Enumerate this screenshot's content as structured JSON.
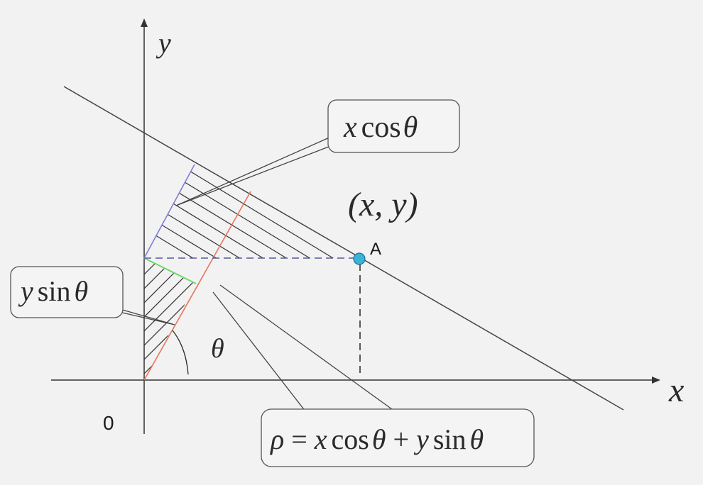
{
  "axes": {
    "x_label": "x",
    "y_label": "y",
    "origin_label": "0"
  },
  "point": {
    "coord_label": "(x, y)",
    "name": "A",
    "fill_color": "#3bb3d9"
  },
  "angle_label": "θ",
  "callouts": {
    "xcos": {
      "var": "x",
      "fn": "cos",
      "angle": "θ"
    },
    "ysin": {
      "var": "y",
      "fn": "sin",
      "angle": "θ"
    },
    "formula": {
      "rho": "ρ",
      "eq": "=",
      "x": "x",
      "cos": "cos",
      "theta1": "θ",
      "plus": "+",
      "y": "y",
      "sin": "sin",
      "theta2": "θ"
    }
  },
  "colors": {
    "normal_line": "#e8765a",
    "xcos_segment": "#7b7fd4",
    "ysin_segment": "#6fd86f",
    "dashed": "#555a9a"
  }
}
